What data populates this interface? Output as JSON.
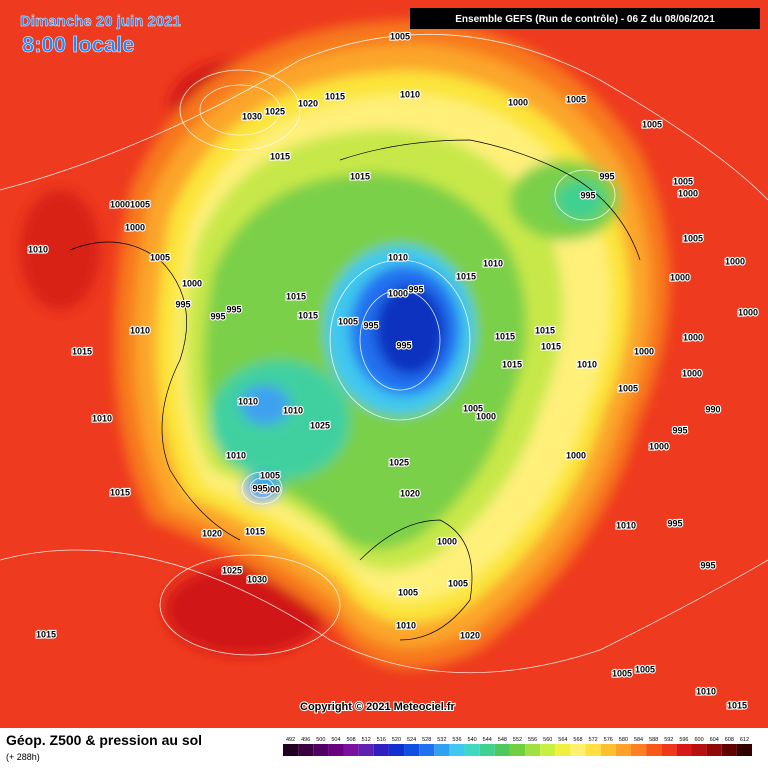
{
  "header": {
    "date": "Dimanche 20 juin 2021",
    "time": "8:00 locale",
    "run": "Ensemble GEFS  (Run de contrôle)  -  06 Z du 08/06/2021"
  },
  "footer": {
    "title": "Géop. Z500 & pression au sol",
    "lead": "(+ 288h)",
    "copyright": "Copyright © 2021 Meteociel.fr"
  },
  "isobar_labels": [
    "1005",
    "1010",
    "1000",
    "1005",
    "1005",
    "1015",
    "1020",
    "1030",
    "1025",
    "1015",
    "1015",
    "995",
    "995",
    "1005",
    "1000",
    "1005",
    "1000",
    "1000",
    "1010",
    "1005",
    "1010",
    "1015",
    "1010",
    "1005",
    "1000",
    "1000",
    "1000",
    "995",
    "995",
    "995",
    "1015",
    "1000",
    "995",
    "1015",
    "1005",
    "995",
    "995",
    "1010",
    "1000",
    "1015",
    "1015",
    "1015",
    "1000",
    "1000",
    "1015",
    "1010",
    "1015",
    "1000",
    "1005",
    "1010",
    "1010",
    "1025",
    "1005",
    "1000",
    "1010",
    "990",
    "995",
    "1000",
    "1010",
    "1025",
    "1000",
    "1005",
    "1000",
    "995",
    "1015",
    "1020",
    "1010",
    "995",
    "1020",
    "1015",
    "1000",
    "995",
    "1025",
    "1030",
    "1005",
    "1005",
    "1015",
    "1010",
    "1020",
    "1005",
    "1005",
    "1010",
    "1015"
  ],
  "colorbar": [
    {
      "label": "492",
      "color": "#200020"
    },
    {
      "label": "496",
      "color": "#3a0040"
    },
    {
      "label": "500",
      "color": "#500060"
    },
    {
      "label": "504",
      "color": "#680080"
    },
    {
      "label": "508",
      "color": "#7a10a0"
    },
    {
      "label": "512",
      "color": "#6020b0"
    },
    {
      "label": "516",
      "color": "#3020c0"
    },
    {
      "label": "520",
      "color": "#1030d0"
    },
    {
      "label": "524",
      "color": "#1050e0"
    },
    {
      "label": "528",
      "color": "#2070f0"
    },
    {
      "label": "532",
      "color": "#30a0f0"
    },
    {
      "label": "536",
      "color": "#40c8f0"
    },
    {
      "label": "540",
      "color": "#40d8c0"
    },
    {
      "label": "544",
      "color": "#40d090"
    },
    {
      "label": "548",
      "color": "#50c860"
    },
    {
      "label": "552",
      "color": "#70d040"
    },
    {
      "label": "556",
      "color": "#a0e040"
    },
    {
      "label": "560",
      "color": "#c8f040"
    },
    {
      "label": "564",
      "color": "#f0f040"
    },
    {
      "label": "568",
      "color": "#fff070"
    },
    {
      "label": "572",
      "color": "#ffe040"
    },
    {
      "label": "576",
      "color": "#ffc030"
    },
    {
      "label": "580",
      "color": "#ffa028"
    },
    {
      "label": "584",
      "color": "#ff8020"
    },
    {
      "label": "588",
      "color": "#f85818"
    },
    {
      "label": "592",
      "color": "#f03818"
    },
    {
      "label": "596",
      "color": "#d81818"
    },
    {
      "label": "600",
      "color": "#b81010"
    },
    {
      "label": "604",
      "color": "#900808"
    },
    {
      "label": "608",
      "color": "#600000"
    },
    {
      "label": "612",
      "color": "#300000"
    }
  ]
}
